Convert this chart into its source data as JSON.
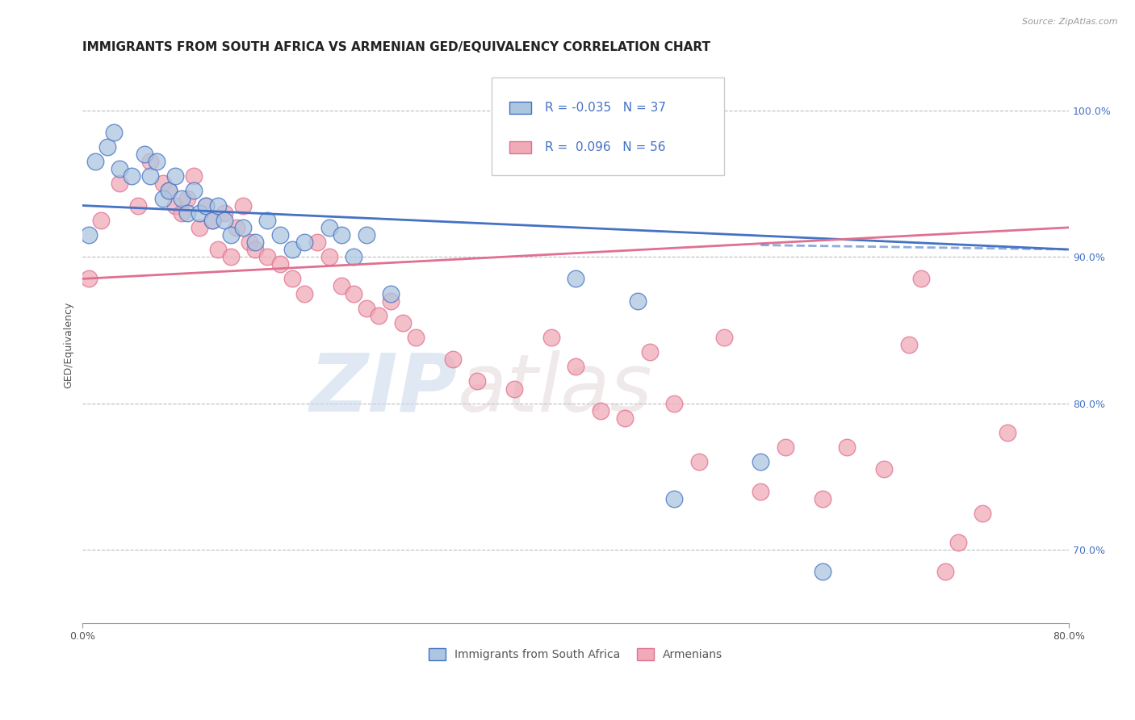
{
  "title": "IMMIGRANTS FROM SOUTH AFRICA VS ARMENIAN GED/EQUIVALENCY CORRELATION CHART",
  "source_text": "Source: ZipAtlas.com",
  "ylabel": "GED/Equivalency",
  "legend_blue_r": "-0.035",
  "legend_blue_n": "37",
  "legend_pink_r": "0.096",
  "legend_pink_n": "56",
  "legend_label_blue": "Immigrants from South Africa",
  "legend_label_pink": "Armenians",
  "blue_color": "#adc6e0",
  "pink_color": "#f0aab8",
  "blue_line_color": "#4472c4",
  "pink_line_color": "#e07090",
  "watermark_zip": "ZIP",
  "watermark_atlas": "atlas",
  "blue_points_x": [
    0.5,
    1.0,
    2.0,
    2.5,
    3.0,
    4.0,
    5.0,
    5.5,
    6.0,
    6.5,
    7.0,
    7.5,
    8.0,
    8.5,
    9.0,
    9.5,
    10.0,
    10.5,
    11.0,
    11.5,
    12.0,
    13.0,
    14.0,
    15.0,
    16.0,
    17.0,
    18.0,
    20.0,
    21.0,
    22.0,
    23.0,
    25.0,
    40.0,
    45.0,
    48.0,
    55.0,
    60.0
  ],
  "blue_points_y": [
    91.5,
    96.5,
    97.5,
    98.5,
    96.0,
    95.5,
    97.0,
    95.5,
    96.5,
    94.0,
    94.5,
    95.5,
    94.0,
    93.0,
    94.5,
    93.0,
    93.5,
    92.5,
    93.5,
    92.5,
    91.5,
    92.0,
    91.0,
    92.5,
    91.5,
    90.5,
    91.0,
    92.0,
    91.5,
    90.0,
    91.5,
    87.5,
    88.5,
    87.0,
    73.5,
    76.0,
    68.5
  ],
  "pink_points_x": [
    0.5,
    1.5,
    3.0,
    4.5,
    5.5,
    6.5,
    7.0,
    7.5,
    8.0,
    8.5,
    9.0,
    9.5,
    10.0,
    10.5,
    11.0,
    11.5,
    12.0,
    12.5,
    13.0,
    13.5,
    14.0,
    15.0,
    16.0,
    17.0,
    18.0,
    19.0,
    20.0,
    21.0,
    22.0,
    23.0,
    24.0,
    25.0,
    26.0,
    27.0,
    30.0,
    32.0,
    35.0,
    38.0,
    40.0,
    42.0,
    44.0,
    46.0,
    48.0,
    50.0,
    52.0,
    55.0,
    57.0,
    60.0,
    62.0,
    65.0,
    67.0,
    68.0,
    70.0,
    71.0,
    73.0,
    75.0
  ],
  "pink_points_y": [
    88.5,
    92.5,
    95.0,
    93.5,
    96.5,
    95.0,
    94.5,
    93.5,
    93.0,
    94.0,
    95.5,
    92.0,
    93.5,
    92.5,
    90.5,
    93.0,
    90.0,
    92.0,
    93.5,
    91.0,
    90.5,
    90.0,
    89.5,
    88.5,
    87.5,
    91.0,
    90.0,
    88.0,
    87.5,
    86.5,
    86.0,
    87.0,
    85.5,
    84.5,
    83.0,
    81.5,
    81.0,
    84.5,
    82.5,
    79.5,
    79.0,
    83.5,
    80.0,
    76.0,
    84.5,
    74.0,
    77.0,
    73.5,
    77.0,
    75.5,
    84.0,
    88.5,
    68.5,
    70.5,
    72.5,
    78.0
  ],
  "xlim": [
    0,
    80
  ],
  "ylim": [
    65,
    103
  ],
  "yticks": [
    70.0,
    80.0,
    90.0,
    100.0
  ],
  "xticks": [
    0,
    80
  ],
  "blue_trendline_x": [
    0,
    80
  ],
  "blue_trendline_y": [
    93.5,
    90.5
  ],
  "pink_trendline_x": [
    0,
    80
  ],
  "pink_trendline_y": [
    88.5,
    92.0
  ],
  "title_fontsize": 11,
  "tick_fontsize": 9
}
